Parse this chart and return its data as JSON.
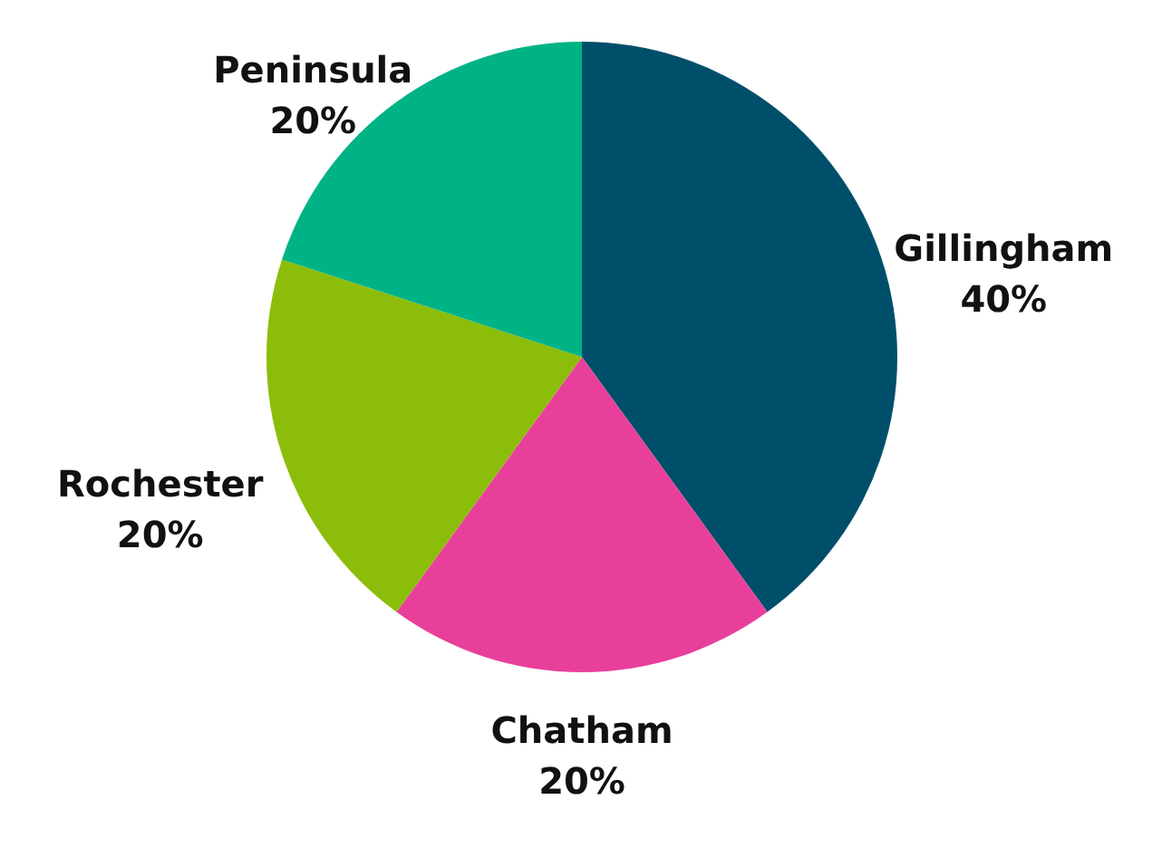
{
  "chart_data": {
    "type": "pie",
    "categories": [
      "Gillingham",
      "Chatham",
      "Rochester",
      "Peninsula"
    ],
    "values": [
      40,
      20,
      20,
      20
    ],
    "colors": [
      "#004f6a",
      "#e8409a",
      "#8cbd0a",
      "#00b386"
    ],
    "value_labels": [
      "40%",
      "20%",
      "20%",
      "20%"
    ],
    "legend": false
  }
}
